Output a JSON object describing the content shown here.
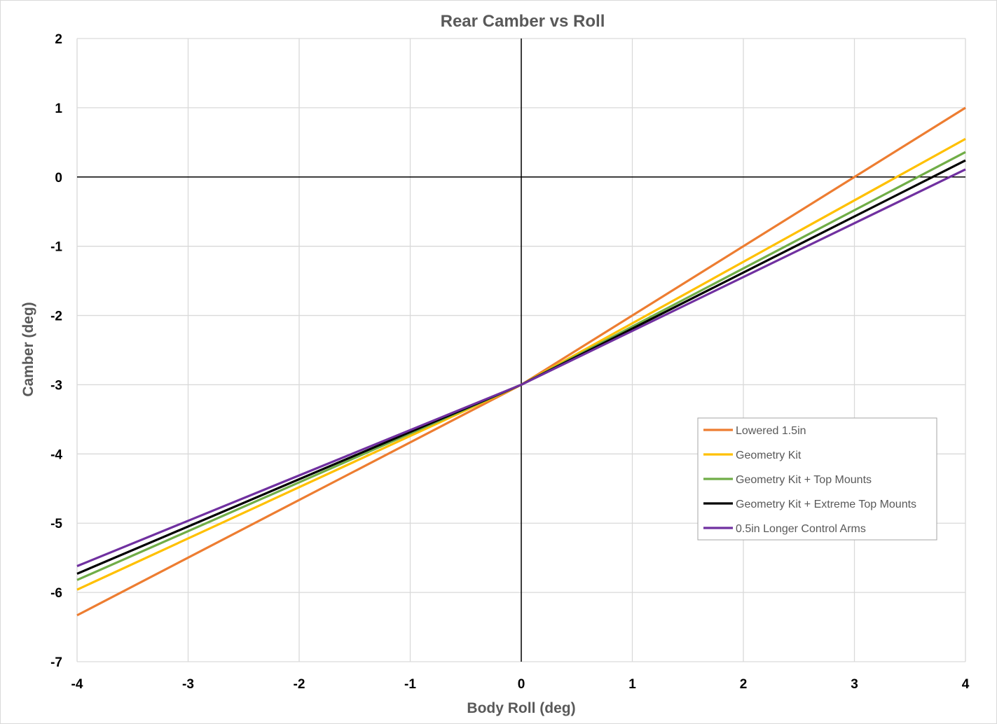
{
  "chart_data": {
    "type": "line",
    "title": "Rear Camber vs Roll",
    "xlabel": "Body Roll (deg)",
    "ylabel": "Camber (deg)",
    "xlim": [
      -4,
      4
    ],
    "ylim": [
      -7,
      2
    ],
    "x_ticks": [
      "-4",
      "-3",
      "-2",
      "-1",
      "0",
      "1",
      "2",
      "3",
      "4"
    ],
    "y_ticks": [
      "2",
      "1",
      "0",
      "-1",
      "-2",
      "-3",
      "-4",
      "-5",
      "-6",
      "-7"
    ],
    "grid": true,
    "legend_position": "right",
    "x": [
      -4,
      0,
      4
    ],
    "series": [
      {
        "name": "Lowered 1.5in",
        "color": "#ED7D31",
        "values": [
          -6.33,
          -3.0,
          1.0
        ]
      },
      {
        "name": "Geometry Kit",
        "color": "#FFC000",
        "values": [
          -5.96,
          -3.0,
          0.55
        ]
      },
      {
        "name": "Geometry Kit + Top Mounts",
        "color": "#70AD47",
        "values": [
          -5.82,
          -3.0,
          0.36
        ]
      },
      {
        "name": "Geometry Kit + Extreme Top Mounts",
        "color": "#000000",
        "values": [
          -5.73,
          -3.0,
          0.24
        ]
      },
      {
        "name": "0.5in Longer Control Arms",
        "color": "#7030A0",
        "values": [
          -5.62,
          -3.0,
          0.11
        ]
      }
    ]
  }
}
